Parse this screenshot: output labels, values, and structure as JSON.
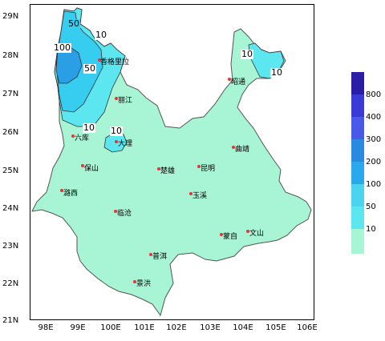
{
  "map": {
    "lat_labels": [
      "29N",
      "28N",
      "27N",
      "26N",
      "25N",
      "24N",
      "23N",
      "22N",
      "21N"
    ],
    "lon_labels": [
      "98E",
      "99E",
      "100E",
      "101E",
      "102E",
      "103E",
      "104E",
      "105E",
      "106E"
    ],
    "colors": {
      "land": "#a8f5d6",
      "c10": "#5ce6ef",
      "c50": "#36cdf0",
      "c100": "#2a9fe6",
      "c200": "#1e7fd8",
      "outline": "#555555",
      "city_dot": "#e8323a"
    },
    "cities": [
      {
        "name": "香格里拉"
      },
      {
        "name": "丽江"
      },
      {
        "name": "昭通"
      },
      {
        "name": "六库"
      },
      {
        "name": "大理"
      },
      {
        "name": "曲靖"
      },
      {
        "name": "保山"
      },
      {
        "name": "楚雄"
      },
      {
        "name": "昆明"
      },
      {
        "name": "潞西"
      },
      {
        "name": "玉溪"
      },
      {
        "name": "临沧"
      },
      {
        "name": "蒙自"
      },
      {
        "name": "文山"
      },
      {
        "name": "普洱"
      },
      {
        "name": "景洪"
      }
    ],
    "contour_labels": [
      "50",
      "10",
      "100",
      "50",
      "10",
      "10",
      "10",
      "10"
    ]
  },
  "legend": {
    "values": [
      "800",
      "400",
      "300",
      "200",
      "100",
      "50",
      "10"
    ],
    "colors": [
      "#2a1ea8",
      "#3a3ad6",
      "#4a5ae8",
      "#2a8ae0",
      "#2aa8ec",
      "#4ad4f0",
      "#a8f5d6"
    ]
  }
}
